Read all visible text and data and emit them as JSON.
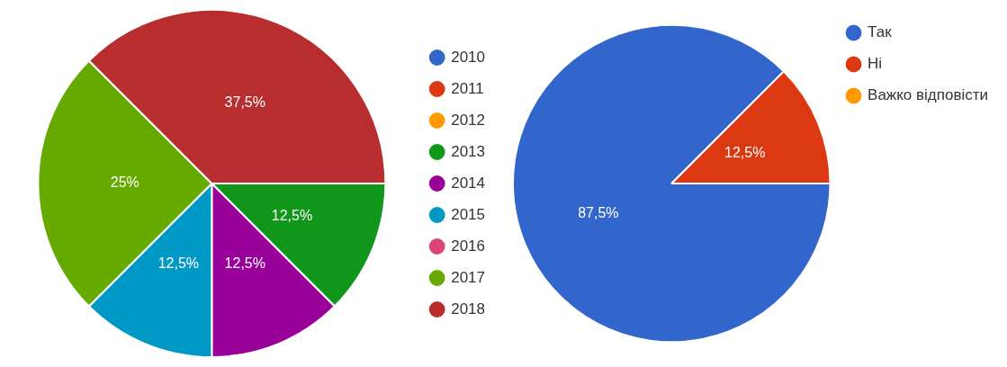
{
  "chart_data": [
    {
      "type": "pie",
      "categories": [
        "2010",
        "2011",
        "2012",
        "2013",
        "2014",
        "2015",
        "2016",
        "2017",
        "2018"
      ],
      "values": [
        0,
        0,
        0,
        12.5,
        12.5,
        12.5,
        0,
        25,
        37.5
      ],
      "colors": [
        "#3366cc",
        "#dc3912",
        "#ff9900",
        "#109618",
        "#990099",
        "#0099c6",
        "#dd4477",
        "#66aa00",
        "#b82e2e"
      ],
      "value_labels": [
        null,
        null,
        null,
        "12,5%",
        "12,5%",
        "12,5%",
        null,
        "25%",
        "37,5%"
      ],
      "legend": "right"
    },
    {
      "type": "pie",
      "categories": [
        "Так",
        "Ні",
        "Важко відповісти"
      ],
      "values": [
        87.5,
        12.5,
        0
      ],
      "colors": [
        "#3366cc",
        "#dc3912",
        "#ff9900"
      ],
      "value_labels": [
        "87,5%",
        "12,5%",
        null
      ],
      "legend": "top right"
    }
  ]
}
